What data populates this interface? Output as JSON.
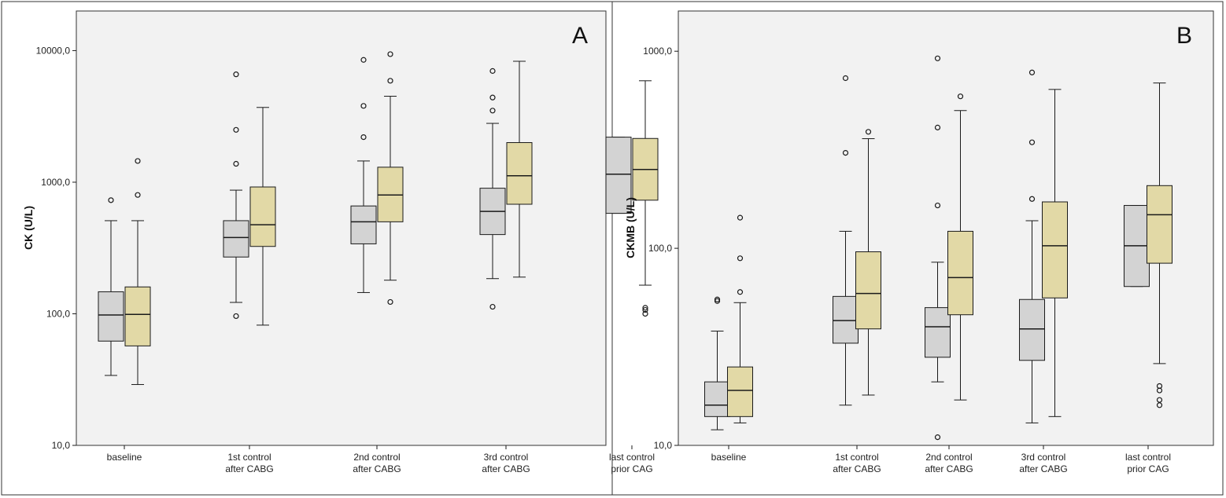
{
  "colors": {
    "group1_fill": "#d3d3d3",
    "group2_fill": "#e2d9a6",
    "plot_background": "#f2f2f2",
    "stroke": "#1a1a1a"
  },
  "chart_data": [
    {
      "panel_label": "A",
      "type": "boxplot",
      "ylabel": "CK (U/L)",
      "yscale": "log",
      "ylim": [
        10,
        20000
      ],
      "ytick_values": [
        10,
        100,
        1000,
        10000
      ],
      "ytick_labels": [
        "10,0",
        "100,0",
        "1000,0",
        "10000,0"
      ],
      "categories": [
        {
          "line1": "baseline",
          "line2": ""
        },
        {
          "line1": "1st control",
          "line2": "after CABG"
        },
        {
          "line1": "2nd control",
          "line2": "after CABG"
        },
        {
          "line1": "3rd control",
          "line2": "after CABG"
        },
        {
          "line1": "last control",
          "line2": "prior CAG"
        }
      ],
      "boxes": [
        {
          "category": 0,
          "group": 1,
          "whisker_low": 34,
          "q1": 62,
          "median": 98,
          "q3": 147,
          "whisker_high": 510,
          "outliers": [
            730
          ]
        },
        {
          "category": 0,
          "group": 2,
          "whisker_low": 29,
          "q1": 57,
          "median": 99,
          "q3": 160,
          "whisker_high": 510,
          "outliers": [
            800,
            1450
          ]
        },
        {
          "category": 1,
          "group": 1,
          "whisker_low": 122,
          "q1": 270,
          "median": 380,
          "q3": 510,
          "whisker_high": 870,
          "outliers": [
            96,
            1380,
            2500,
            6600
          ]
        },
        {
          "category": 1,
          "group": 2,
          "whisker_low": 82,
          "q1": 325,
          "median": 475,
          "q3": 920,
          "whisker_high": 3700,
          "outliers": []
        },
        {
          "category": 2,
          "group": 1,
          "whisker_low": 145,
          "q1": 340,
          "median": 500,
          "q3": 660,
          "whisker_high": 1450,
          "outliers": [
            2200,
            3800,
            8500
          ]
        },
        {
          "category": 2,
          "group": 2,
          "whisker_low": 180,
          "q1": 500,
          "median": 800,
          "q3": 1300,
          "whisker_high": 4500,
          "outliers": [
            123,
            5900,
            9400
          ]
        },
        {
          "category": 3,
          "group": 1,
          "whisker_low": 185,
          "q1": 400,
          "median": 600,
          "q3": 900,
          "whisker_high": 2800,
          "outliers": [
            113,
            3500,
            4400,
            7000
          ]
        },
        {
          "category": 3,
          "group": 2,
          "whisker_low": 190,
          "q1": 680,
          "median": 1120,
          "q3": 2000,
          "whisker_high": 8300,
          "outliers": []
        },
        {
          "category": 4,
          "group": 1,
          "whisker_low": 580,
          "q1": 580,
          "median": 1150,
          "q3": 2200,
          "whisker_high": 2200,
          "outliers": []
        },
        {
          "category": 4,
          "group": 2,
          "whisker_low": 165,
          "q1": 730,
          "median": 1250,
          "q3": 2150,
          "whisker_high": 5900,
          "outliers": [
            100,
            107,
            111
          ]
        }
      ]
    },
    {
      "panel_label": "B",
      "type": "boxplot",
      "ylabel": "CKMB (U/L)",
      "yscale": "log",
      "ylim": [
        10,
        1600
      ],
      "ytick_values": [
        10,
        100,
        1000
      ],
      "ytick_labels": [
        "10,0",
        "100,0",
        "1000,0"
      ],
      "categories": [
        {
          "line1": "baseline",
          "line2": ""
        },
        {
          "line1": "1st control",
          "line2": "after CABG"
        },
        {
          "line1": "2nd control",
          "line2": "after CABG"
        },
        {
          "line1": "3rd control",
          "line2": "after CABG"
        },
        {
          "line1": "last control",
          "line2": "prior CAG"
        }
      ],
      "boxes": [
        {
          "category": 0,
          "group": 1,
          "whisker_low": 12,
          "q1": 14,
          "median": 16,
          "q3": 21,
          "whisker_high": 38,
          "outliers": [
            54,
            55
          ]
        },
        {
          "category": 0,
          "group": 2,
          "whisker_low": 13,
          "q1": 14,
          "median": 19,
          "q3": 25,
          "whisker_high": 53,
          "outliers": [
            60,
            89,
            143
          ]
        },
        {
          "category": 1,
          "group": 1,
          "whisker_low": 16,
          "q1": 33,
          "median": 43,
          "q3": 57,
          "whisker_high": 122,
          "outliers": [
            305,
            730
          ]
        },
        {
          "category": 1,
          "group": 2,
          "whisker_low": 18,
          "q1": 39,
          "median": 59,
          "q3": 96,
          "whisker_high": 360,
          "outliers": [
            390
          ]
        },
        {
          "category": 2,
          "group": 1,
          "whisker_low": 21,
          "q1": 28,
          "median": 40,
          "q3": 50,
          "whisker_high": 85,
          "outliers": [
            11,
            165,
            410,
            920
          ]
        },
        {
          "category": 2,
          "group": 2,
          "whisker_low": 17,
          "q1": 46,
          "median": 71,
          "q3": 122,
          "whisker_high": 500,
          "outliers": [
            590
          ]
        },
        {
          "category": 3,
          "group": 1,
          "whisker_low": 13,
          "q1": 27,
          "median": 39,
          "q3": 55,
          "whisker_high": 138,
          "outliers": [
            178,
            345,
            780
          ]
        },
        {
          "category": 3,
          "group": 2,
          "whisker_low": 14,
          "q1": 56,
          "median": 103,
          "q3": 172,
          "whisker_high": 640,
          "outliers": []
        },
        {
          "category": 4,
          "group": 1,
          "whisker_low": 64,
          "q1": 64,
          "median": 103,
          "q3": 165,
          "whisker_high": 165,
          "outliers": []
        },
        {
          "category": 4,
          "group": 2,
          "whisker_low": 26,
          "q1": 84,
          "median": 148,
          "q3": 208,
          "whisker_high": 690,
          "outliers": [
            16,
            17,
            19,
            20
          ]
        }
      ]
    }
  ]
}
